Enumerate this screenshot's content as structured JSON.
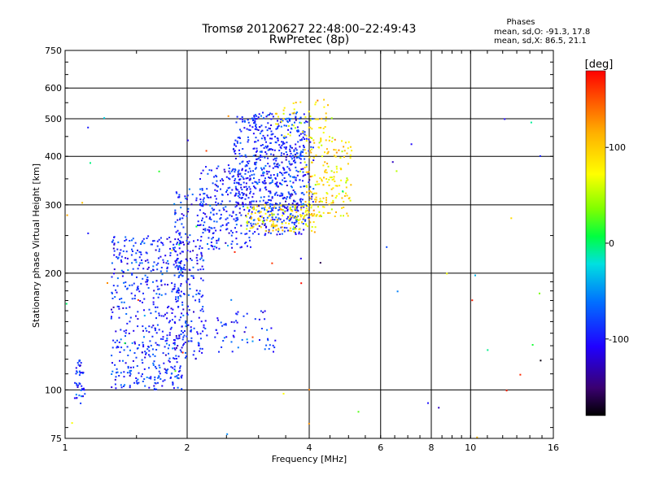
{
  "header": {
    "title": "Tromsø 20120627 22:48:00–22:49:43",
    "subtitle": "RwPretec (8p)"
  },
  "phases_box": {
    "title": "Phases",
    "o_line": "mean, sd,O: -91.3, 17.8",
    "x_line": "mean, sd,X: 86.5, 21.1"
  },
  "chart_data": {
    "type": "scatter",
    "title": "Tromsø 20120627 22:48:00–22:49:43",
    "subtitle": "RwPretec (8p)",
    "xlabel": "Frequency [MHz]",
    "ylabel": "Stationary phase Virtual Height [km]",
    "x_scale": "log",
    "y_scale": "log",
    "xlim": [
      1,
      16
    ],
    "ylim": [
      75,
      750
    ],
    "x_ticks": [
      1,
      2,
      4,
      6,
      8,
      10,
      16
    ],
    "x_tick_labels": [
      "1",
      "2",
      "4",
      "6",
      "8",
      "10",
      "16"
    ],
    "y_ticks": [
      75,
      100,
      200,
      300,
      400,
      500,
      600,
      750
    ],
    "y_tick_labels": [
      "75",
      "100",
      "200",
      "300",
      "400",
      "500",
      "600",
      "750"
    ],
    "x_grid": [
      2,
      4,
      6,
      8,
      10
    ],
    "y_grid": [
      100,
      200,
      300,
      400,
      500,
      600
    ],
    "colorbar": {
      "label": "[deg]",
      "range": [
        -180,
        180
      ],
      "ticks": [
        100,
        0,
        -100
      ],
      "tick_labels": [
        "100",
        "0",
        "-100"
      ]
    },
    "series": [
      {
        "name": "O",
        "phase_mean": -91.3,
        "phase_sd": 17.8,
        "clusters": [
          {
            "f": [
              1.05,
              1.12
            ],
            "h": [
              92,
              120
            ],
            "n": 40
          },
          {
            "f": [
              1.3,
              1.95
            ],
            "h": [
              100,
              250
            ],
            "n": 520
          },
          {
            "f": [
              1.85,
              2.2
            ],
            "h": [
              120,
              330
            ],
            "n": 220
          },
          {
            "f": [
              2.15,
              2.9
            ],
            "h": [
              230,
              380
            ],
            "n": 260
          },
          {
            "f": [
              2.6,
              3.0
            ],
            "h": [
              300,
              510
            ],
            "n": 110
          },
          {
            "f": [
              2.9,
              3.9
            ],
            "h": [
              250,
              520
            ],
            "n": 420
          },
          {
            "f": [
              3.2,
              4.1
            ],
            "h": [
              270,
              500
            ],
            "n": 160
          },
          {
            "f": [
              2.2,
              3.3
            ],
            "h": [
              125,
              160
            ],
            "n": 60
          }
        ]
      },
      {
        "name": "X",
        "phase_mean": 86.5,
        "phase_sd": 21.1,
        "clusters": [
          {
            "f": [
              2.8,
              4.2
            ],
            "h": [
              255,
              300
            ],
            "n": 140
          },
          {
            "f": [
              3.9,
              5.1
            ],
            "h": [
              280,
              450
            ],
            "n": 180
          },
          {
            "f": [
              3.3,
              4.6
            ],
            "h": [
              450,
              560
            ],
            "n": 50
          }
        ]
      }
    ]
  }
}
